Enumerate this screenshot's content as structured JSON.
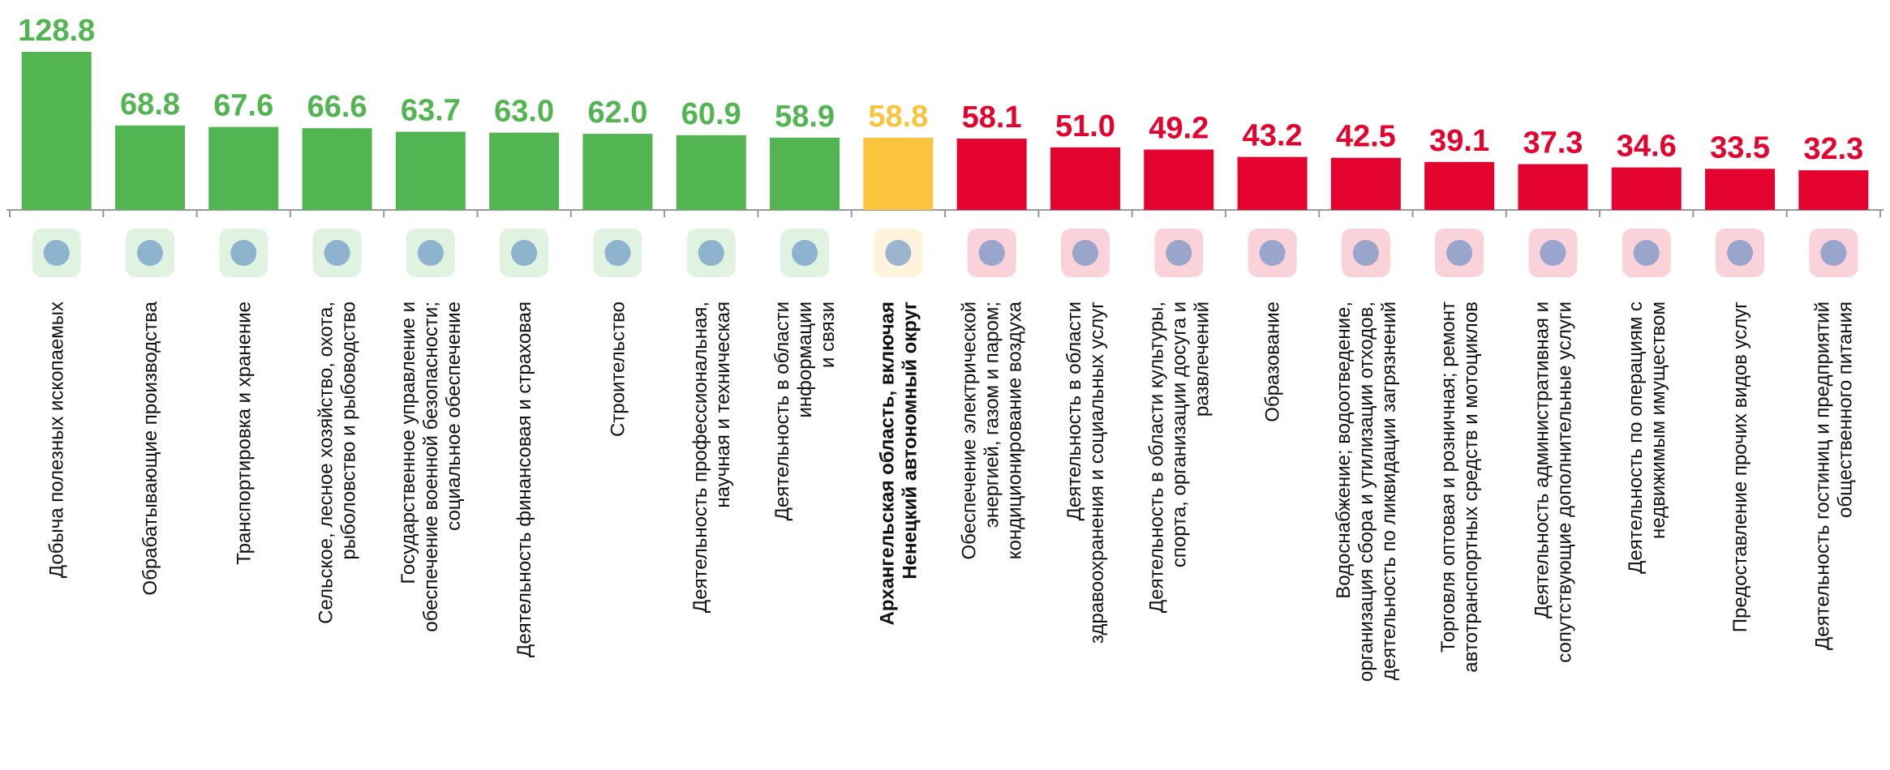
{
  "chart_data": {
    "type": "bar",
    "categories": [
      "Добыча полезных ископаемых",
      "Обрабатывающие производства",
      "Транспортировка и хранение",
      "Сельское, лесное хозяйство, охота,\nрыболовство и рыбоводство",
      "Государственное управление и\nобеспечение военной безопасности;\nсоциальное обеспечение",
      "Деятельность финансовая и страховая",
      "Строительство",
      "Деятельность профессиональная,\nнаучная и техническая",
      "Деятельность в области\nинформации\nи связи",
      "Архангельская область, включая\nНенецкий автономный округ",
      "Обеспечение электрической\nэнергией, газом и паром;\nкондиционирование воздуха",
      "Деятельность в области\nздравоохранения и социальных услуг",
      "Деятельность в области культуры,\nспорта, организации досуга и\nразвлечений",
      "Образование",
      "Водоснабжение; водоотведение,\nорганизация сбора и утилизации отходов,\nдеятельность по ликвидации загрязнений",
      "Торговля оптовая и розничная; ремонт\nавтотранспортных средств и мотоциклов",
      "Деятельность административная и\nсопутствующие дополнительные услуги",
      "Деятельность по операциям с\nнедвижимым имуществом",
      "Предоставление прочих видов услуг",
      "Деятельность гостиниц и предприятий\nобщественного питания"
    ],
    "values": [
      128.8,
      68.8,
      67.6,
      66.6,
      63.7,
      63.0,
      62.0,
      60.9,
      58.9,
      58.8,
      58.1,
      51.0,
      49.2,
      43.2,
      42.5,
      39.1,
      37.3,
      34.6,
      33.5,
      32.3
    ],
    "value_labels": [
      "128.8",
      "68.8",
      "67.6",
      "66.6",
      "63.7",
      "63.0",
      "62.0",
      "60.9",
      "58.9",
      "58.8",
      "58.1",
      "51.0",
      "49.2",
      "43.2",
      "42.5",
      "39.1",
      "37.3",
      "34.6",
      "33.5",
      "32.3"
    ],
    "colors": [
      "#52b552",
      "#52b552",
      "#52b552",
      "#52b552",
      "#52b552",
      "#52b552",
      "#52b552",
      "#52b552",
      "#52b552",
      "#fcc33c",
      "#e4032e",
      "#e4032e",
      "#e4032e",
      "#e4032e",
      "#e4032e",
      "#e4032e",
      "#e4032e",
      "#e4032e",
      "#e4032e",
      "#e4032e"
    ],
    "highlight_color": "#fcc33c"
  }
}
